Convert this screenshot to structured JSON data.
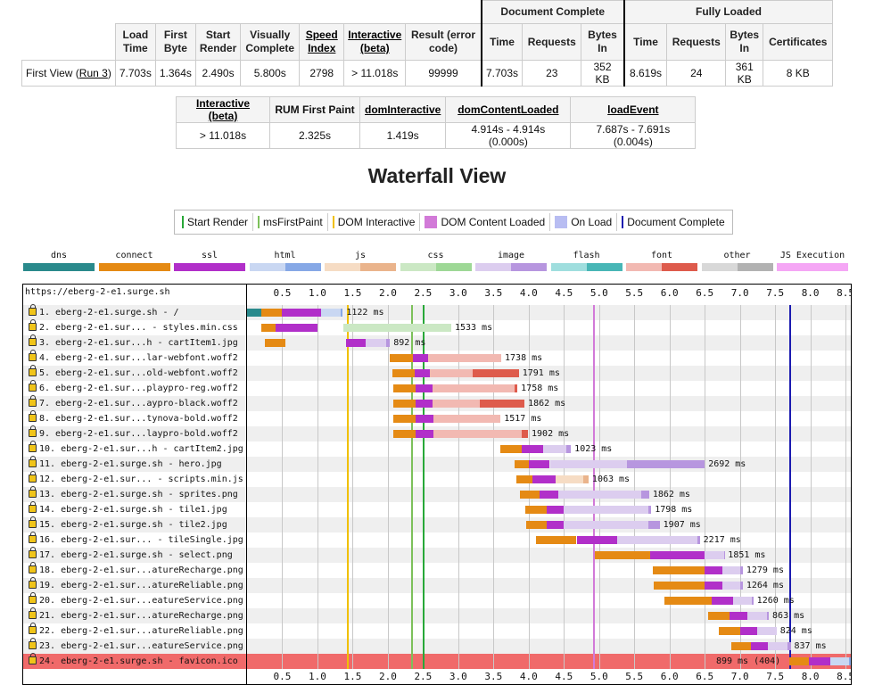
{
  "summary": {
    "group_doc": "Document Complete",
    "group_full": "Fully Loaded",
    "headers": {
      "load_time": "Load Time",
      "first_byte": "First Byte",
      "start_render": "Start Render",
      "visually_complete": "Visually Complete",
      "speed_index": "Speed Index",
      "interactive": "Interactive (beta)",
      "result": "Result (error code)",
      "dc_time": "Time",
      "dc_requests": "Requests",
      "dc_bytes": "Bytes In",
      "fl_time": "Time",
      "fl_requests": "Requests",
      "fl_bytes": "Bytes In",
      "certificates": "Certificates"
    },
    "row_label": "First View (",
    "run_link": "Run 3",
    "row_label_end": ")",
    "values": {
      "load_time": "7.703s",
      "first_byte": "1.364s",
      "start_render": "2.490s",
      "visually_complete": "5.800s",
      "speed_index": "2798",
      "interactive": "> 11.018s",
      "result": "99999",
      "dc_time": "7.703s",
      "dc_requests": "23",
      "dc_bytes": "352 KB",
      "fl_time": "8.619s",
      "fl_requests": "24",
      "fl_bytes": "361 KB",
      "certificates": "8 KB"
    }
  },
  "metrics": {
    "headers": [
      "Interactive (beta)",
      "RUM First Paint",
      "domInteractive",
      "domContentLoaded",
      "loadEvent"
    ],
    "values": [
      "> 11.018s",
      "2.325s",
      "1.419s",
      "4.914s - 4.914s (0.000s)",
      "7.687s - 7.691s (0.004s)"
    ]
  },
  "waterfall": {
    "title": "Waterfall View",
    "legend_markers": [
      {
        "label": "Start Render",
        "color": "#28a838"
      },
      {
        "label": "msFirstPaint",
        "color": "#7cc05a"
      },
      {
        "label": "DOM Interactive",
        "color": "#f0c000"
      },
      {
        "label": "DOM Content Loaded",
        "color": "#d27ad8"
      },
      {
        "label": "On Load",
        "color": "#b8bdf2"
      },
      {
        "label": "Document Complete",
        "color": "#1b1bb0"
      }
    ],
    "legend_types": [
      {
        "label": "dns",
        "colors": [
          "#2a8a8c",
          "#2a8a8c"
        ]
      },
      {
        "label": "connect",
        "colors": [
          "#e58a14",
          "#e58a14"
        ]
      },
      {
        "label": "ssl",
        "colors": [
          "#b12fc9",
          "#b12fc9"
        ]
      },
      {
        "label": "html",
        "colors": [
          "#c9d7f2",
          "#86a8e6"
        ]
      },
      {
        "label": "js",
        "colors": [
          "#f6dcc4",
          "#eab48c"
        ]
      },
      {
        "label": "css",
        "colors": [
          "#cbe8c4",
          "#9ed896"
        ]
      },
      {
        "label": "image",
        "colors": [
          "#dccdef",
          "#b796df"
        ]
      },
      {
        "label": "flash",
        "colors": [
          "#9fdede",
          "#48b6b6"
        ]
      },
      {
        "label": "font",
        "colors": [
          "#f2b9b2",
          "#de5b4c"
        ]
      },
      {
        "label": "other",
        "colors": [
          "#d8d8d8",
          "#b2b2b2"
        ]
      },
      {
        "label": "JS Execution",
        "colors": [
          "#f5a6f5",
          "#f5a6f5"
        ]
      }
    ],
    "page_url": "https://eberg-2-e1.surge.sh",
    "axis_ticks": [
      "0.5",
      "1.0",
      "1.5",
      "2.0",
      "2.5",
      "3.0",
      "3.5",
      "4.0",
      "4.5",
      "5.0",
      "5.5",
      "6.0",
      "6.5",
      "7.0",
      "7.5",
      "8.0",
      "8.5"
    ],
    "axis_max_s": 8.6,
    "markers_s": {
      "dom_interactive": 1.419,
      "ms_first_paint": 2.325,
      "start_render": 2.49,
      "dom_content_loaded": 4.914,
      "document_complete": 7.703
    },
    "requests": [
      {
        "label": "1. eberg-2-e1.surge.sh - /",
        "dur_label": "1122 ms",
        "type": "html",
        "dns": [
          0.0,
          0.2
        ],
        "connect": [
          0.2,
          0.5
        ],
        "ssl": [
          0.5,
          1.05
        ],
        "wait": [
          1.05,
          1.33
        ],
        "recv": [
          1.33,
          1.36
        ]
      },
      {
        "label": "2. eberg-2-e1.sur... - styles.min.css",
        "dur_label": "1533 ms",
        "type": "css",
        "connect": [
          0.2,
          0.4
        ],
        "ssl": [
          0.4,
          1.0
        ],
        "wait": [
          1.37,
          2.9
        ],
        "recv": [
          2.9,
          2.9
        ]
      },
      {
        "label": "3. eberg-2-e1.sur...h - cartItem1.jpg",
        "dur_label": "892 ms",
        "type": "image",
        "connect": [
          0.25,
          0.55
        ],
        "ssl": [
          1.4,
          1.68
        ],
        "wait": [
          1.68,
          1.97
        ],
        "recv": [
          1.97,
          2.03
        ]
      },
      {
        "label": "4. eberg-2-e1.sur...lar-webfont.woff2",
        "dur_label": "1738 ms",
        "type": "font",
        "connect": [
          2.03,
          2.35
        ],
        "ssl": [
          2.35,
          2.57
        ],
        "wait": [
          2.57,
          3.61
        ],
        "recv": [
          3.61,
          3.61
        ]
      },
      {
        "label": "5. eberg-2-e1.sur...old-webfont.woff2",
        "dur_label": "1791 ms",
        "type": "font",
        "connect": [
          2.07,
          2.38
        ],
        "ssl": [
          2.38,
          2.6
        ],
        "wait": [
          2.6,
          3.2
        ],
        "recv": [
          3.2,
          3.86
        ]
      },
      {
        "label": "6. eberg-2-e1.sur...playpro-reg.woff2",
        "dur_label": "1758 ms",
        "type": "font",
        "connect": [
          2.08,
          2.39
        ],
        "ssl": [
          2.39,
          2.63
        ],
        "wait": [
          2.63,
          3.8
        ],
        "recv": [
          3.8,
          3.84
        ]
      },
      {
        "label": "7. eberg-2-e1.sur...aypro-black.woff2",
        "dur_label": "1862 ms",
        "type": "font",
        "connect": [
          2.08,
          2.39
        ],
        "ssl": [
          2.39,
          2.64
        ],
        "wait": [
          2.64,
          3.3
        ],
        "recv": [
          3.3,
          3.94
        ]
      },
      {
        "label": "8. eberg-2-e1.sur...tynova-bold.woff2",
        "dur_label": "1517 ms",
        "type": "font",
        "connect": [
          2.08,
          2.39
        ],
        "ssl": [
          2.39,
          2.65
        ],
        "wait": [
          2.65,
          3.6
        ],
        "recv": [
          3.6,
          3.6
        ]
      },
      {
        "label": "9. eberg-2-e1.sur...laypro-bold.woff2",
        "dur_label": "1902 ms",
        "type": "font",
        "connect": [
          2.08,
          2.39
        ],
        "ssl": [
          2.39,
          2.65
        ],
        "wait": [
          2.65,
          3.9
        ],
        "recv": [
          3.9,
          3.99
        ]
      },
      {
        "label": "10. eberg-2-e1.sur...h - cartItem2.jpg",
        "dur_label": "1023 ms",
        "type": "image",
        "connect": [
          3.6,
          3.9
        ],
        "ssl": [
          3.9,
          4.2
        ],
        "wait": [
          4.2,
          4.54
        ],
        "recv": [
          4.54,
          4.6
        ]
      },
      {
        "label": "11. eberg-2-e1.surge.sh - hero.jpg",
        "dur_label": "2692 ms",
        "type": "image",
        "connect": [
          3.8,
          4.0
        ],
        "ssl": [
          4.0,
          4.3
        ],
        "wait": [
          4.3,
          5.4
        ],
        "recv": [
          5.4,
          6.5
        ]
      },
      {
        "label": "12. eberg-2-e1.sur... - scripts.min.js",
        "dur_label": "1063 ms",
        "type": "js",
        "connect": [
          3.82,
          4.05
        ],
        "ssl": [
          4.05,
          4.38
        ],
        "wait": [
          4.38,
          4.78
        ],
        "recv": [
          4.78,
          4.85
        ]
      },
      {
        "label": "13. eberg-2-e1.surge.sh - sprites.png",
        "dur_label": "1862 ms",
        "type": "image",
        "connect": [
          3.87,
          4.15
        ],
        "ssl": [
          4.15,
          4.42
        ],
        "wait": [
          4.42,
          5.6
        ],
        "recv": [
          5.6,
          5.71
        ]
      },
      {
        "label": "14. eberg-2-e1.surge.sh - tile1.jpg",
        "dur_label": "1798 ms",
        "type": "image",
        "connect": [
          3.95,
          4.25
        ],
        "ssl": [
          4.25,
          4.5
        ],
        "wait": [
          4.5,
          5.7
        ],
        "recv": [
          5.7,
          5.74
        ]
      },
      {
        "label": "15. eberg-2-e1.surge.sh - tile2.jpg",
        "dur_label": "1907 ms",
        "type": "image",
        "connect": [
          3.97,
          4.25
        ],
        "ssl": [
          4.25,
          4.5
        ],
        "wait": [
          4.5,
          5.7
        ],
        "recv": [
          5.7,
          5.86
        ]
      },
      {
        "label": "16. eberg-2-e1.sur... - tileSingle.jpg",
        "dur_label": "2217 ms",
        "type": "image",
        "connect": [
          4.1,
          4.68
        ],
        "ssl": [
          4.68,
          5.25
        ],
        "wait": [
          5.25,
          6.4
        ],
        "recv": [
          6.4,
          6.43
        ]
      },
      {
        "label": "17. eberg-2-e1.surge.sh - select.png",
        "dur_label": "1851 ms",
        "type": "image",
        "connect": [
          4.94,
          5.72
        ],
        "ssl": [
          5.72,
          6.5
        ],
        "wait": [
          6.5,
          6.77
        ],
        "recv": [
          6.77,
          6.78
        ]
      },
      {
        "label": "18. eberg-2-e1.sur...atureRecharge.png",
        "dur_label": "1279 ms",
        "type": "image",
        "connect": [
          5.76,
          6.5
        ],
        "ssl": [
          6.5,
          6.75
        ],
        "wait": [
          6.75,
          7.0
        ],
        "recv": [
          7.0,
          7.04
        ]
      },
      {
        "label": "19. eberg-2-e1.sur...atureReliable.png",
        "dur_label": "1264 ms",
        "type": "image",
        "connect": [
          5.78,
          6.5
        ],
        "ssl": [
          6.5,
          6.75
        ],
        "wait": [
          6.75,
          7.0
        ],
        "recv": [
          7.0,
          7.04
        ]
      },
      {
        "label": "20. eberg-2-e1.sur...eatureService.png",
        "dur_label": "1260 ms",
        "type": "image",
        "connect": [
          5.93,
          6.6
        ],
        "ssl": [
          6.6,
          6.9
        ],
        "wait": [
          6.9,
          7.17
        ],
        "recv": [
          7.17,
          7.19
        ]
      },
      {
        "label": "21. eberg-2-e1.sur...atureRecharge.png",
        "dur_label": "863 ms",
        "type": "image",
        "connect": [
          6.55,
          6.85
        ],
        "ssl": [
          6.85,
          7.1
        ],
        "wait": [
          7.1,
          7.38
        ],
        "recv": [
          7.38,
          7.41
        ]
      },
      {
        "label": "22. eberg-2-e1.sur...atureReliable.png",
        "dur_label": "824 ms",
        "type": "image",
        "connect": [
          6.7,
          7.0
        ],
        "ssl": [
          7.0,
          7.25
        ],
        "wait": [
          7.25,
          7.52
        ],
        "recv": [
          7.52,
          7.52
        ]
      },
      {
        "label": "23. eberg-2-e1.sur...eatureService.png",
        "dur_label": "837 ms",
        "type": "image",
        "connect": [
          6.88,
          7.15
        ],
        "ssl": [
          7.15,
          7.4
        ],
        "wait": [
          7.4,
          7.68
        ],
        "recv": [
          7.68,
          7.72
        ]
      },
      {
        "label": "24. eberg-2-e1.surge.sh - favicon.ico",
        "dur_label": "899 ms (404)",
        "type": "html",
        "error": true,
        "connect": [
          7.7,
          7.98
        ],
        "ssl": [
          7.98,
          8.28
        ],
        "wait": [
          8.28,
          8.55
        ],
        "recv": [
          8.55,
          8.6
        ]
      }
    ]
  }
}
